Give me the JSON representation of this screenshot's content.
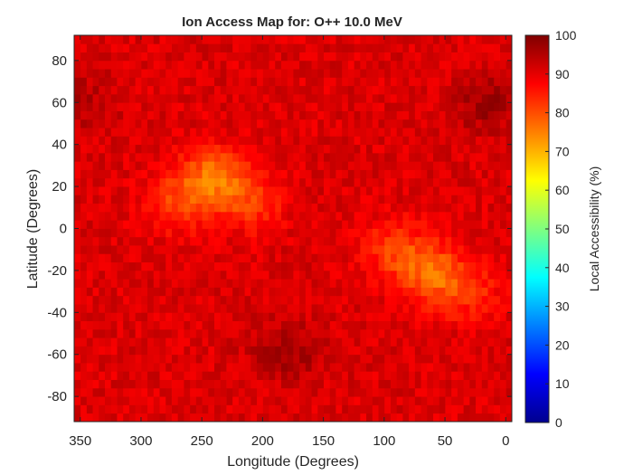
{
  "chart_data": {
    "type": "heatmap",
    "title": "Ion Access Map for: O++ 10.0 MeV",
    "xlabel": "Longitude (Degrees)",
    "ylabel": "Latitude (Degrees)",
    "colorbar_label": "Local Accessibility (%)",
    "colormap": "jet",
    "clim": [
      0,
      100
    ],
    "xlim": [
      355,
      -5
    ],
    "ylim": [
      -92,
      92
    ],
    "x_reversed": true,
    "grid": false,
    "xticks": [
      "350",
      "300",
      "250",
      "200",
      "150",
      "100",
      "50",
      "0"
    ],
    "xtick_values": [
      350,
      300,
      250,
      200,
      150,
      100,
      50,
      0
    ],
    "yticks": [
      "80",
      "60",
      "40",
      "20",
      "0",
      "-20",
      "-40",
      "-60",
      "-80"
    ],
    "ytick_values": [
      80,
      60,
      40,
      20,
      0,
      -20,
      -40,
      -60,
      -80
    ],
    "cbar_ticks": [
      "100",
      "90",
      "80",
      "70",
      "60",
      "50",
      "40",
      "30",
      "20",
      "10",
      "0"
    ],
    "cbar_tick_values": [
      100,
      90,
      80,
      70,
      60,
      50,
      40,
      30,
      20,
      10,
      0
    ],
    "lon_range": [
      -5,
      355
    ],
    "lat_range": [
      -92,
      92
    ],
    "background_value": 91,
    "features": [
      {
        "lon": 240,
        "lat": 25,
        "value": 77
      },
      {
        "lon": 210,
        "lat": 12,
        "value": 83
      },
      {
        "lon": 270,
        "lat": 12,
        "value": 82
      },
      {
        "lon": 60,
        "lat": -22,
        "value": 79
      },
      {
        "lon": 90,
        "lat": -10,
        "value": 82
      },
      {
        "lon": 30,
        "lat": -30,
        "value": 84
      },
      {
        "lon": 180,
        "lat": -58,
        "value": 97
      },
      {
        "lon": 15,
        "lat": 60,
        "value": 97
      },
      {
        "lon": 350,
        "lat": 60,
        "value": 95
      }
    ]
  }
}
